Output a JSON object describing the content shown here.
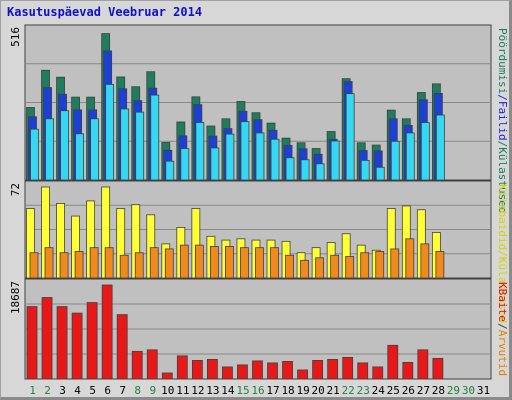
{
  "page": {
    "title": "Kasutuspäevad Veebruar 2014"
  },
  "colors": {
    "panel_bg": "#c0c0c0",
    "grid": "#888888",
    "visits": "#1e7d5c",
    "pages": "#1d3fd6",
    "hits": "#35d8f2",
    "kilobytes_rgn_yellow": "#ffff33",
    "hosts": "#f08a1c",
    "bytes": "#e81818",
    "label_visits": "#1e7d5c",
    "label_files": "#2424d0",
    "label_hosts": "#d4d400",
    "label_kbytes": "#e08000",
    "label_kbaite": "#e01010",
    "weekend_day": "#208040"
  },
  "chart_data": [
    {
      "type": "bar",
      "panel": "top",
      "ymax_label": "516",
      "ylim": [
        0,
        516
      ],
      "categories": [
        "1",
        "2",
        "3",
        "4",
        "5",
        "6",
        "7",
        "8",
        "9",
        "10",
        "11",
        "12",
        "13",
        "14",
        "15",
        "16",
        "17",
        "18",
        "19",
        "20",
        "21",
        "22",
        "23",
        "24",
        "25",
        "26",
        "27",
        "28",
        "29",
        "30",
        "31"
      ],
      "right_labels": [
        "Pöördumisi",
        "Failid",
        "Külastused"
      ],
      "series": [
        {
          "key": "visits",
          "values": [
            251,
            380,
            356,
            287,
            287,
            507,
            357,
            323,
            375,
            130,
            201,
            288,
            187,
            212,
            272,
            233,
            197,
            145,
            129,
            109,
            168,
            351,
            129,
            121,
            242,
            212,
            303,
            333,
            0,
            0,
            0
          ]
        },
        {
          "key": "pages",
          "values": [
            219,
            320,
            297,
            243,
            243,
            447,
            316,
            275,
            318,
            103,
            153,
            261,
            152,
            178,
            238,
            209,
            172,
            120,
            108,
            89,
            141,
            341,
            102,
            101,
            212,
            189,
            278,
            300,
            0,
            0,
            0
          ]
        },
        {
          "key": "hits",
          "values": [
            176,
            212,
            240,
            160,
            212,
            331,
            246,
            235,
            294,
            65,
            109,
            199,
            111,
            159,
            202,
            163,
            141,
            77,
            70,
            56,
            135,
            299,
            68,
            44,
            134,
            163,
            199,
            225,
            0,
            0,
            0
          ]
        }
      ]
    },
    {
      "type": "bar",
      "panel": "middle",
      "ymax_label": "72",
      "ylim": [
        0,
        72
      ],
      "categories": [
        "1",
        "2",
        "3",
        "4",
        "5",
        "6",
        "7",
        "8",
        "9",
        "10",
        "11",
        "12",
        "13",
        "14",
        "15",
        "16",
        "17",
        "18",
        "19",
        "20",
        "21",
        "22",
        "23",
        "24",
        "25",
        "26",
        "27",
        "28",
        "29",
        "30",
        "31"
      ],
      "right_labels": [
        "Kilobaidid",
        "Külastused",
        "/",
        "Arvutid"
      ],
      "series": [
        {
          "key": "kilobytes_rgn_yellow",
          "values": [
            55,
            72,
            59,
            49,
            61,
            72,
            55,
            58,
            50,
            27,
            40,
            55,
            33,
            30,
            31,
            30,
            30,
            29,
            20,
            24,
            28,
            35,
            26,
            22,
            55,
            57,
            54,
            36,
            0,
            0,
            0
          ]
        },
        {
          "key": "hosts",
          "values": [
            20,
            24,
            20,
            21,
            24,
            24,
            18,
            20,
            24,
            23,
            26,
            26,
            25,
            25,
            24,
            24,
            24,
            18,
            14,
            16,
            18,
            17,
            20,
            21,
            23,
            31,
            27,
            21,
            0,
            0,
            0
          ]
        }
      ]
    },
    {
      "type": "bar",
      "panel": "bottom",
      "ymax_label": "18687",
      "ylim": [
        0,
        18687
      ],
      "categories": [
        "1",
        "2",
        "3",
        "4",
        "5",
        "6",
        "7",
        "8",
        "9",
        "10",
        "11",
        "12",
        "13",
        "14",
        "15",
        "16",
        "17",
        "18",
        "19",
        "20",
        "21",
        "22",
        "23",
        "24",
        "25",
        "26",
        "27",
        "28",
        "29",
        "30",
        "31"
      ],
      "right_labels": [
        "KBaite"
      ],
      "series": [
        {
          "key": "bytes",
          "values": [
            14400,
            16200,
            14400,
            13100,
            15200,
            18687,
            12800,
            5500,
            5800,
            1200,
            4600,
            3700,
            3900,
            2400,
            2800,
            3600,
            3200,
            3500,
            1800,
            3700,
            3900,
            4300,
            3200,
            2400,
            6700,
            3300,
            5800,
            4100,
            0,
            0,
            0
          ]
        }
      ]
    }
  ],
  "x_labels": {
    "weekend_days": [
      "1",
      "2",
      "8",
      "9",
      "15",
      "16",
      "22",
      "23",
      "29",
      "30"
    ]
  }
}
